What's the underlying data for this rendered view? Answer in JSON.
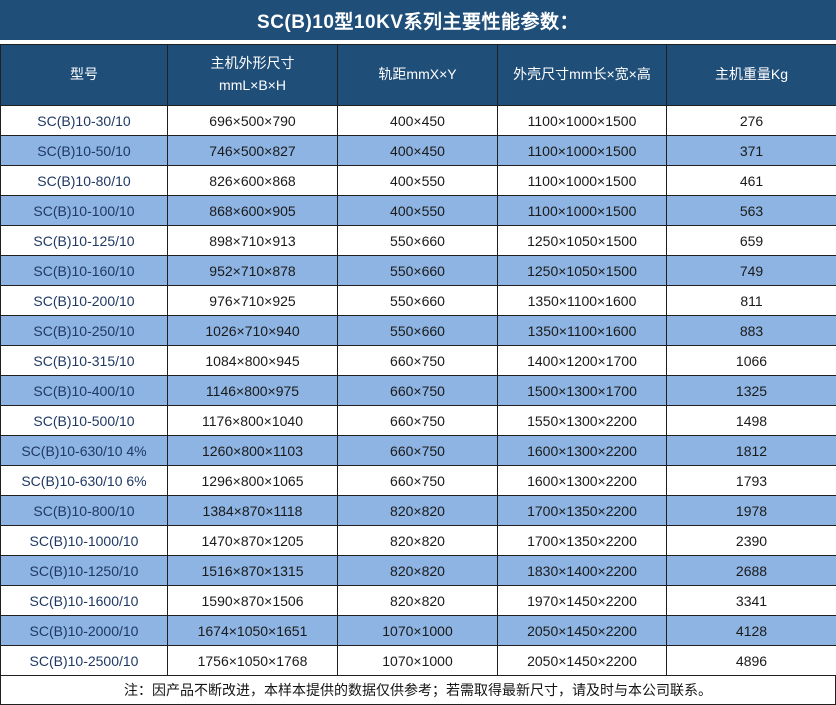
{
  "title": "SC(B)10型10KV系列主要性能参数：",
  "table": {
    "header": {
      "model": "型号",
      "dimensions_line1": "主机外形尺寸",
      "dimensions_line2": "mmL×B×H",
      "gauge": "轨距mmX×Y",
      "enclosure": "外壳尺寸mm长×宽×高",
      "weight": "主机重量Kg"
    },
    "rows": [
      {
        "model": "SC(B)10-30/10",
        "dimensions": "696×500×790",
        "gauge": "400×450",
        "enclosure": "1100×1000×1500",
        "weight": "276"
      },
      {
        "model": "SC(B)10-50/10",
        "dimensions": "746×500×827",
        "gauge": "400×450",
        "enclosure": "1100×1000×1500",
        "weight": "371"
      },
      {
        "model": "SC(B)10-80/10",
        "dimensions": "826×600×868",
        "gauge": "400×550",
        "enclosure": "1100×1000×1500",
        "weight": "461"
      },
      {
        "model": "SC(B)10-100/10",
        "dimensions": "868×600×905",
        "gauge": "400×550",
        "enclosure": "1100×1000×1500",
        "weight": "563"
      },
      {
        "model": "SC(B)10-125/10",
        "dimensions": "898×710×913",
        "gauge": "550×660",
        "enclosure": "1250×1050×1500",
        "weight": "659"
      },
      {
        "model": "SC(B)10-160/10",
        "dimensions": "952×710×878",
        "gauge": "550×660",
        "enclosure": "1250×1050×1500",
        "weight": "749"
      },
      {
        "model": "SC(B)10-200/10",
        "dimensions": "976×710×925",
        "gauge": "550×660",
        "enclosure": "1350×1100×1600",
        "weight": "811"
      },
      {
        "model": "SC(B)10-250/10",
        "dimensions": "1026×710×940",
        "gauge": "550×660",
        "enclosure": "1350×1100×1600",
        "weight": "883"
      },
      {
        "model": "SC(B)10-315/10",
        "dimensions": "1084×800×945",
        "gauge": "660×750",
        "enclosure": "1400×1200×1700",
        "weight": "1066"
      },
      {
        "model": "SC(B)10-400/10",
        "dimensions": "1146×800×975",
        "gauge": "660×750",
        "enclosure": "1500×1300×1700",
        "weight": "1325"
      },
      {
        "model": "SC(B)10-500/10",
        "dimensions": "1176×800×1040",
        "gauge": "660×750",
        "enclosure": "1550×1300×2200",
        "weight": "1498"
      },
      {
        "model": "SC(B)10-630/10 4%",
        "dimensions": "1260×800×1103",
        "gauge": "660×750",
        "enclosure": "1600×1300×2200",
        "weight": "1812"
      },
      {
        "model": "SC(B)10-630/10 6%",
        "dimensions": "1296×800×1065",
        "gauge": "660×750",
        "enclosure": "1600×1300×2200",
        "weight": "1793"
      },
      {
        "model": "SC(B)10-800/10",
        "dimensions": "1384×870×1118",
        "gauge": "820×820",
        "enclosure": "1700×1350×2200",
        "weight": "1978"
      },
      {
        "model": "SC(B)10-1000/10",
        "dimensions": "1470×870×1205",
        "gauge": "820×820",
        "enclosure": "1700×1350×2200",
        "weight": "2390"
      },
      {
        "model": "SC(B)10-1250/10",
        "dimensions": "1516×870×1315",
        "gauge": "820×820",
        "enclosure": "1830×1400×2200",
        "weight": "2688"
      },
      {
        "model": "SC(B)10-1600/10",
        "dimensions": "1590×870×1506",
        "gauge": "820×820",
        "enclosure": "1970×1450×2200",
        "weight": "3341"
      },
      {
        "model": "SC(B)10-2000/10",
        "dimensions": "1674×1050×1651",
        "gauge": "1070×1000",
        "enclosure": "2050×1450×2200",
        "weight": "4128"
      },
      {
        "model": "SC(B)10-2500/10",
        "dimensions": "1756×1050×1768",
        "gauge": "1070×1000",
        "enclosure": "2050×1450×2200",
        "weight": "4896"
      }
    ]
  },
  "note": "注：因产品不断改进，本样本提供的数据仅供参考；若需取得最新尺寸，请及时与本公司联系。",
  "colors": {
    "header_bg": "#1F4E79",
    "header_text": "#ffffff",
    "row_alt_bg": "#8DB4E2",
    "row_bg": "#ffffff",
    "grid_border": "#1f1f1f",
    "cell_text": "#1a1a1a",
    "model_text": "#1F3864"
  }
}
